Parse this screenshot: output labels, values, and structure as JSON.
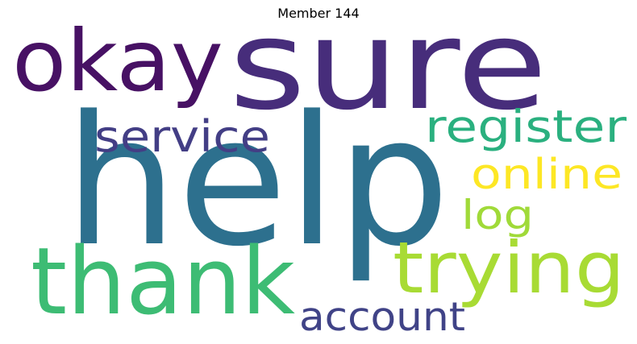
{
  "title": "Member 144",
  "words": [
    {
      "text": "sure",
      "color": "#472d7b"
    },
    {
      "text": "okay",
      "color": "#471164"
    },
    {
      "text": "help",
      "color": "#2d708e"
    },
    {
      "text": "service",
      "color": "#433e85"
    },
    {
      "text": "register",
      "color": "#2ab07f"
    },
    {
      "text": "online",
      "color": "#fde725"
    },
    {
      "text": "log",
      "color": "#a0da39"
    },
    {
      "text": "thank",
      "color": "#3dbc74"
    },
    {
      "text": "trying",
      "color": "#a8db34"
    },
    {
      "text": "account",
      "color": "#404387"
    }
  ]
}
